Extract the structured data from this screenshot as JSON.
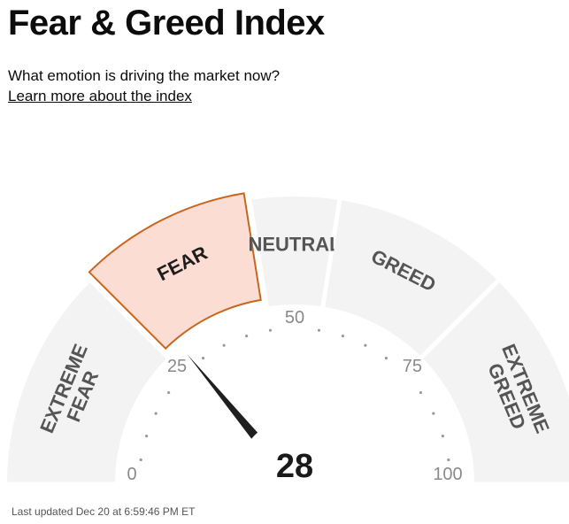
{
  "header": {
    "title": "Fear & Greed Index",
    "subtitle": "What emotion is driving the market now?",
    "learn_more_link": "Learn more about the index"
  },
  "gauge": {
    "value": 28,
    "value_label": "28",
    "active_segment": "FEAR",
    "segments": [
      {
        "label_lines": [
          "EXTREME",
          "FEAR"
        ],
        "from": 0,
        "to": 25
      },
      {
        "label_lines": [
          "FEAR"
        ],
        "from": 25,
        "to": 45
      },
      {
        "label_lines": [
          "NEUTRAL"
        ],
        "from": 45,
        "to": 55
      },
      {
        "label_lines": [
          "GREED"
        ],
        "from": 55,
        "to": 75
      },
      {
        "label_lines": [
          "EXTREME",
          "GREED"
        ],
        "from": 75,
        "to": 100
      }
    ],
    "scale_labels": [
      "0",
      "25",
      "50",
      "75",
      "100"
    ],
    "colors": {
      "segment_fill": "#f3f3f3",
      "active_fill": "#fcddd3",
      "active_stroke": "#c8661f",
      "segment_text": "#555555",
      "active_text": "#1d1d1d",
      "needle": "#1f1f1f",
      "tick_dots": "#9a9a9a",
      "scale_text": "#8a8a8a"
    }
  },
  "footer": {
    "last_updated": "Last updated Dec 20 at 6:59:46 PM ET"
  }
}
